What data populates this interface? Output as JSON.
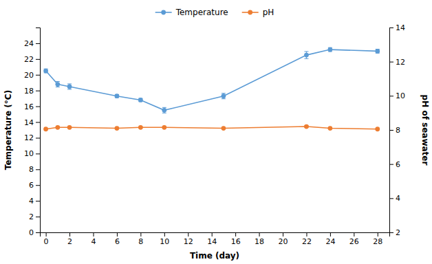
{
  "chart_data": {
    "type": "line",
    "xlabel": "Time (day)",
    "ylabel": "Temperature (°C)",
    "y2label": "pH of seawater",
    "x": [
      0,
      1,
      2,
      6,
      8,
      10,
      15,
      22,
      24,
      28
    ],
    "series": [
      {
        "name": "Temperature",
        "color": "#5B9BD5",
        "marker": "circle",
        "values": [
          20.5,
          18.8,
          18.5,
          17.3,
          16.8,
          15.5,
          17.3,
          22.5,
          23.2,
          23.0
        ],
        "errors": [
          0.25,
          0.35,
          0.35,
          0.2,
          0.2,
          0.35,
          0.35,
          0.45,
          0.25,
          0.25
        ]
      },
      {
        "name": "pH",
        "color": "#ED7D31",
        "marker": "circle",
        "axis": "y2",
        "values": [
          8.05,
          8.15,
          8.15,
          8.1,
          8.15,
          8.15,
          8.1,
          8.2,
          8.1,
          8.05
        ],
        "errors": [
          0.04,
          0.04,
          0.04,
          0.04,
          0.04,
          0.04,
          0.04,
          0.06,
          0.04,
          0.04
        ]
      }
    ],
    "xlim": [
      -0.5,
      29
    ],
    "xticks": [
      0,
      2,
      4,
      6,
      8,
      10,
      12,
      14,
      16,
      18,
      20,
      22,
      24,
      26,
      28
    ],
    "ylim": [
      0,
      26
    ],
    "yticks": [
      0,
      2,
      4,
      6,
      8,
      10,
      12,
      14,
      16,
      18,
      20,
      22,
      24
    ],
    "y2lim": [
      2,
      14
    ],
    "y2ticks": [
      2,
      4,
      6,
      8,
      10,
      12,
      14
    ],
    "grid": false,
    "legend": "top"
  }
}
